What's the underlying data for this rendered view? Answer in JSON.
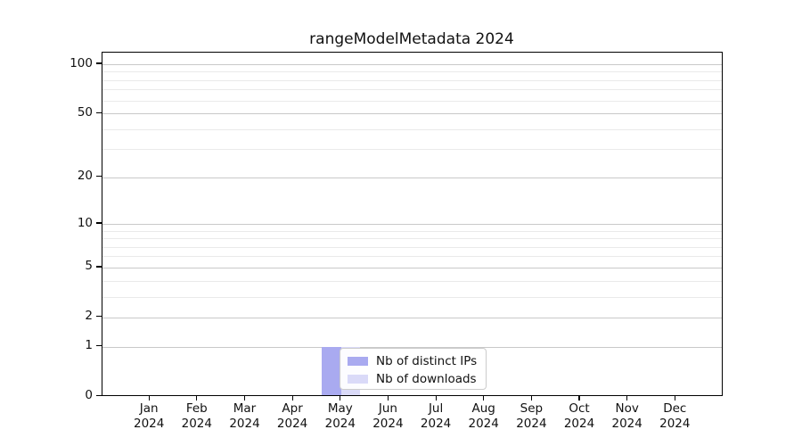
{
  "title": "rangeModelMetadata 2024",
  "chart_data": {
    "type": "bar",
    "title": "rangeModelMetadata 2024",
    "categories": [
      "Jan",
      "Feb",
      "Mar",
      "Apr",
      "May",
      "Jun",
      "Jul",
      "Aug",
      "Sep",
      "Oct",
      "Nov",
      "Dec"
    ],
    "category_year": "2024",
    "series": [
      {
        "name": "Nb of distinct IPs",
        "color": "#a9aaf0",
        "values": [
          0,
          0,
          0,
          0,
          1,
          0,
          0,
          0,
          0,
          0,
          0,
          0
        ]
      },
      {
        "name": "Nb of downloads",
        "color": "#dadaf8",
        "values": [
          0,
          0,
          0,
          0,
          1,
          0,
          0,
          0,
          0,
          0,
          0,
          0
        ]
      }
    ],
    "xlabel": "",
    "ylabel": "",
    "yscale": "log1p",
    "ylim": [
      0,
      100
    ],
    "yticks_major": [
      0,
      1,
      2,
      5,
      10,
      20,
      50,
      100
    ],
    "yticks_minor": [
      3,
      4,
      6,
      7,
      8,
      9,
      30,
      40,
      60,
      70,
      80,
      90
    ],
    "grid": true,
    "legend_position": "lower-center-left"
  },
  "colors": {
    "grid_major": "#c9c9c9",
    "grid_minor": "#eaeaea",
    "spine": "#000000",
    "background": "#ffffff"
  }
}
